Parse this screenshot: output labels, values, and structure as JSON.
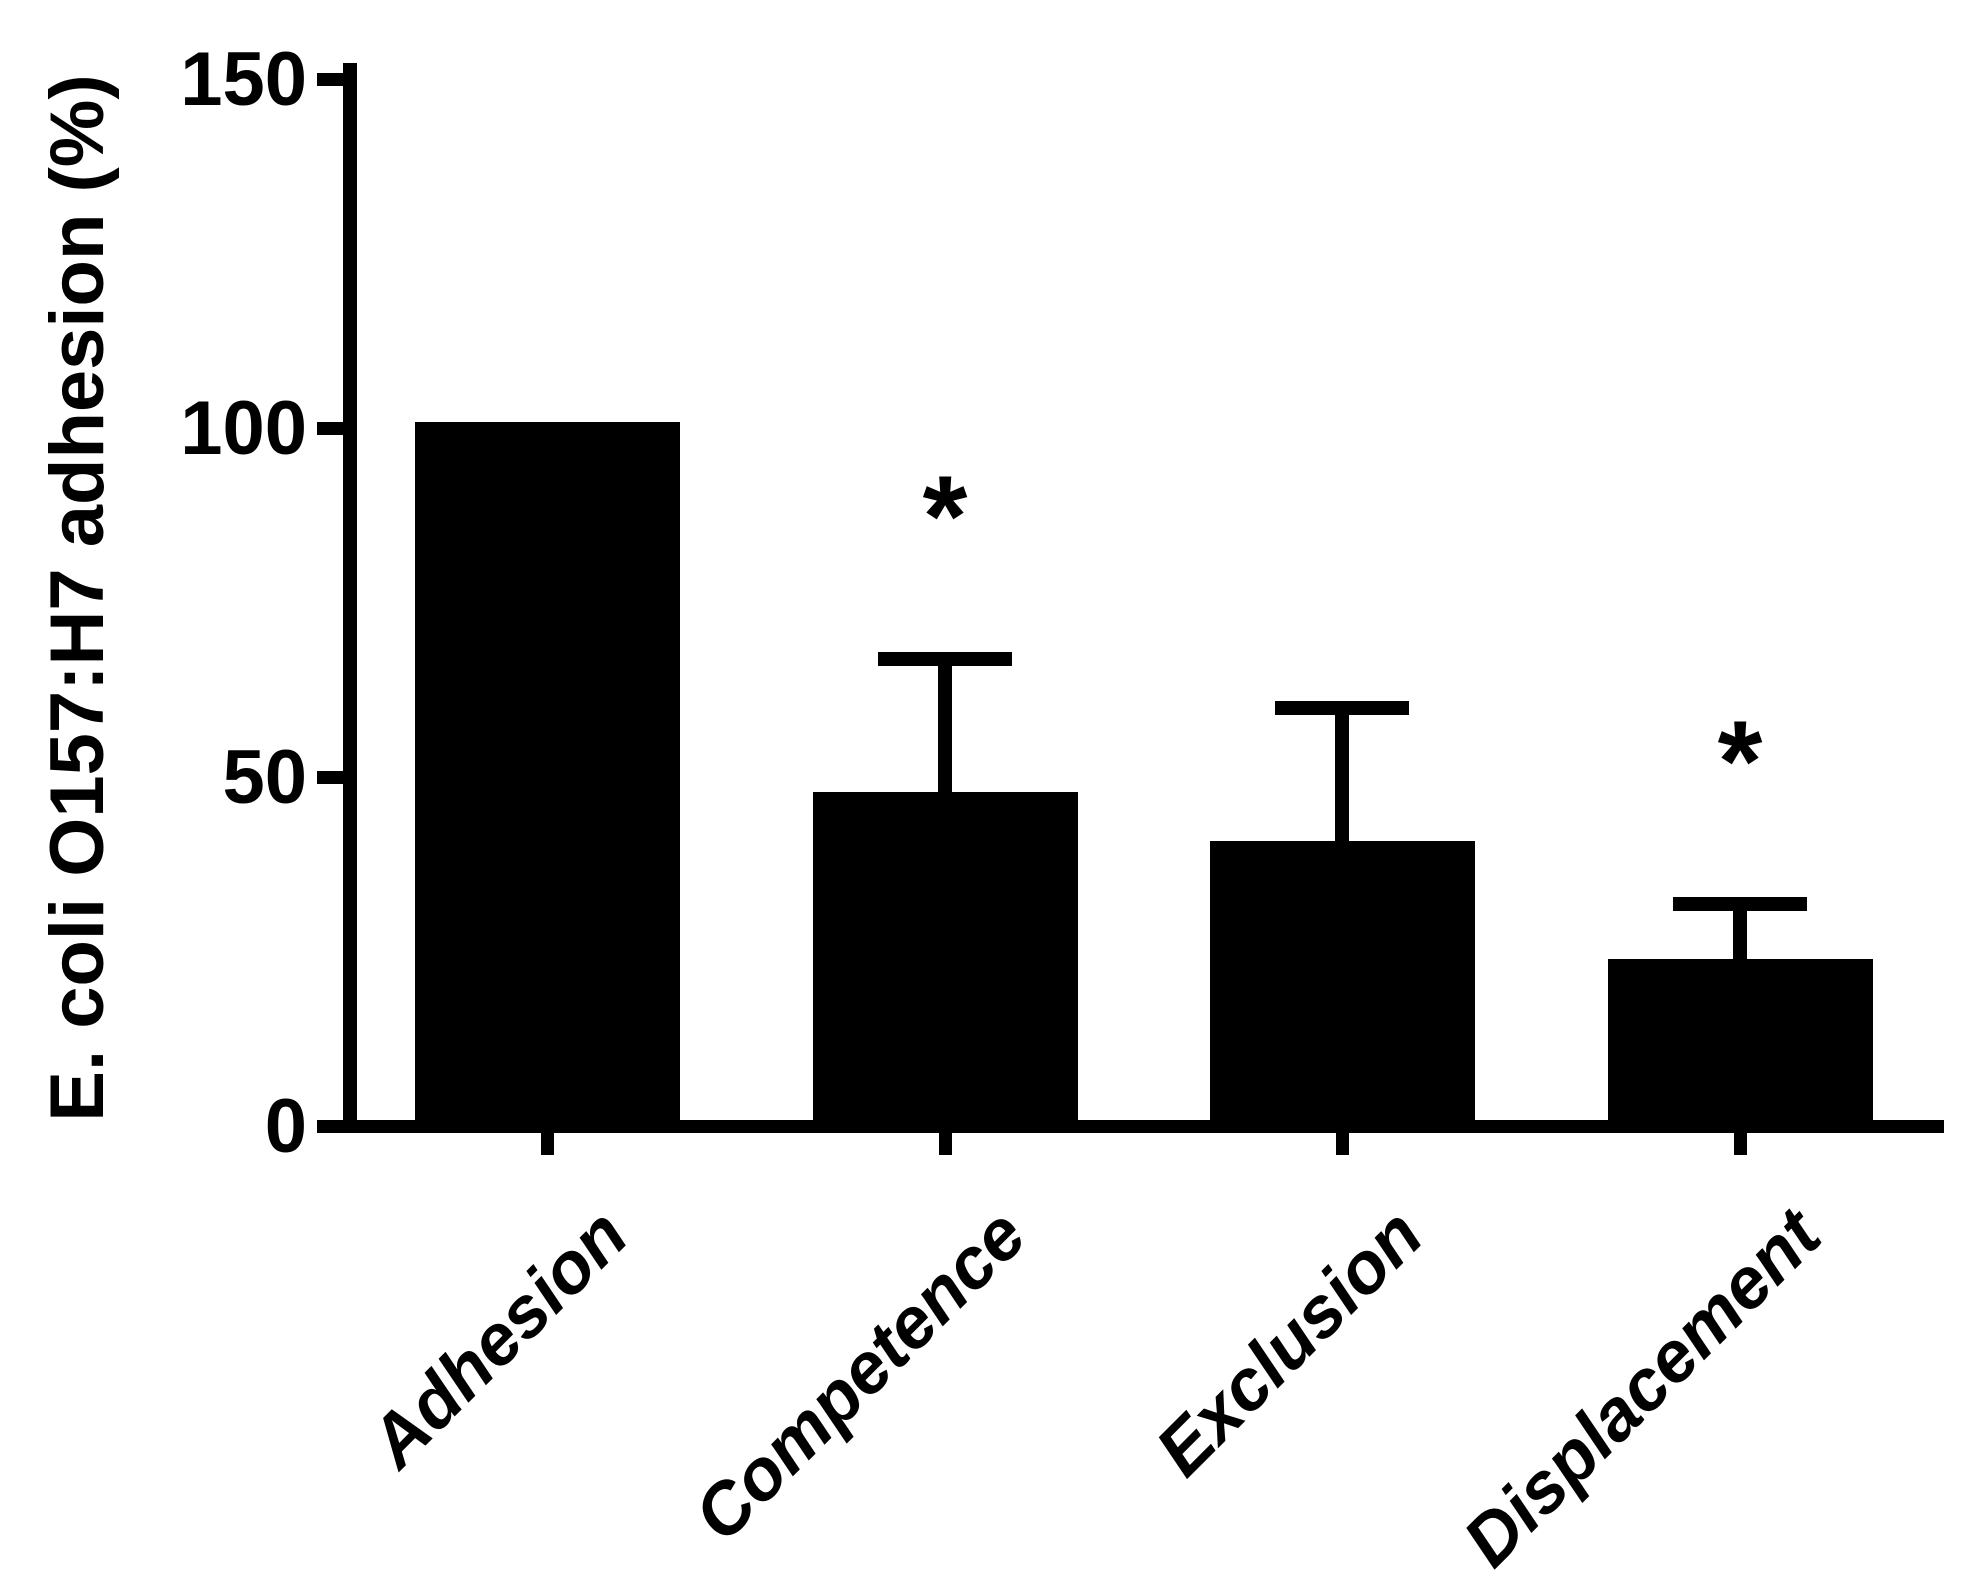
{
  "figure": {
    "background_color": "#ffffff",
    "axis_color": "#000000"
  },
  "chart_data": {
    "type": "bar",
    "title": "",
    "xlabel": "",
    "ylabel": "E. coli O157:H7 adhesion (%)",
    "ylim": [
      0,
      150
    ],
    "yticks": [
      "0",
      "50",
      "100",
      "150"
    ],
    "ytick_values": [
      0,
      50,
      100,
      150
    ],
    "grid": false,
    "legend": false,
    "bar_color": "#000000",
    "categories": [
      "Adhesion",
      "Competence",
      "Exclusion",
      "Displacement"
    ],
    "values": [
      100,
      47,
      40,
      23
    ],
    "error_plus": [
      0,
      20,
      20,
      9
    ],
    "significance": [
      "",
      "*",
      "",
      "*"
    ]
  }
}
